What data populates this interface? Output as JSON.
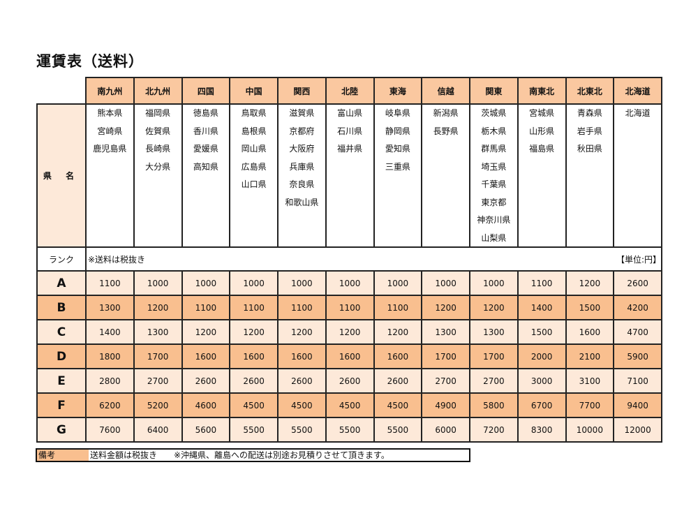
{
  "title": "運賃表（送料）",
  "regions": [
    "南九州",
    "北九州",
    "四国",
    "中国",
    "関西",
    "北陸",
    "東海",
    "信越",
    "関東",
    "南東北",
    "北東北",
    "北海道"
  ],
  "prefecture_label": "県 名",
  "prefectures": [
    [
      "熊本県",
      "宮崎県",
      "鹿児島県"
    ],
    [
      "福岡県",
      "佐賀県",
      "長崎県",
      "大分県"
    ],
    [
      "徳島県",
      "香川県",
      "愛媛県",
      "高知県"
    ],
    [
      "鳥取県",
      "島根県",
      "岡山県",
      "広島県",
      "山口県"
    ],
    [
      "滋賀県",
      "京都府",
      "大阪府",
      "兵庫県",
      "奈良県",
      "和歌山県"
    ],
    [
      "富山県",
      "石川県",
      "福井県"
    ],
    [
      "岐阜県",
      "静岡県",
      "愛知県",
      "三重県"
    ],
    [
      "新潟県",
      "長野県"
    ],
    [
      "茨城県",
      "栃木県",
      "群馬県",
      "埼玉県",
      "千葉県",
      "東京都",
      "神奈川県",
      "山梨県"
    ],
    [
      "宮城県",
      "山形県",
      "福島県"
    ],
    [
      "青森県",
      "岩手県",
      "秋田県"
    ],
    [
      "北海道"
    ]
  ],
  "rank_label": "ランク",
  "tax_note": "※送料は税抜き",
  "unit": "【単位:円】",
  "rates": [
    {
      "rank": "A",
      "values": [
        "1100",
        "1000",
        "1000",
        "1000",
        "1000",
        "1000",
        "1000",
        "1000",
        "1000",
        "1100",
        "1200",
        "2600"
      ]
    },
    {
      "rank": "B",
      "values": [
        "1300",
        "1200",
        "1100",
        "1100",
        "1100",
        "1100",
        "1100",
        "1200",
        "1200",
        "1400",
        "1500",
        "4200"
      ]
    },
    {
      "rank": "C",
      "values": [
        "1400",
        "1300",
        "1200",
        "1200",
        "1200",
        "1200",
        "1200",
        "1300",
        "1300",
        "1500",
        "1600",
        "4700"
      ]
    },
    {
      "rank": "D",
      "values": [
        "1800",
        "1700",
        "1600",
        "1600",
        "1600",
        "1600",
        "1600",
        "1700",
        "1700",
        "2000",
        "2100",
        "5900"
      ]
    },
    {
      "rank": "E",
      "values": [
        "2800",
        "2700",
        "2600",
        "2600",
        "2600",
        "2600",
        "2600",
        "2700",
        "2700",
        "3000",
        "3100",
        "7100"
      ]
    },
    {
      "rank": "F",
      "values": [
        "6200",
        "5200",
        "4600",
        "4500",
        "4500",
        "4500",
        "4500",
        "4900",
        "5800",
        "6700",
        "7700",
        "9400"
      ]
    },
    {
      "rank": "G",
      "values": [
        "7600",
        "6400",
        "5600",
        "5500",
        "5500",
        "5500",
        "5500",
        "6000",
        "7200",
        "8300",
        "10000",
        "12000"
      ]
    }
  ],
  "remark": {
    "label": "備考",
    "text": "送料金額は税抜き　　※沖縄県、離島への配送は別途お見積りさせて頂きます。"
  },
  "colors": {
    "header": "#fac8a0",
    "row_light": "#fde9d9",
    "row_dark": "#f9bf8f"
  }
}
